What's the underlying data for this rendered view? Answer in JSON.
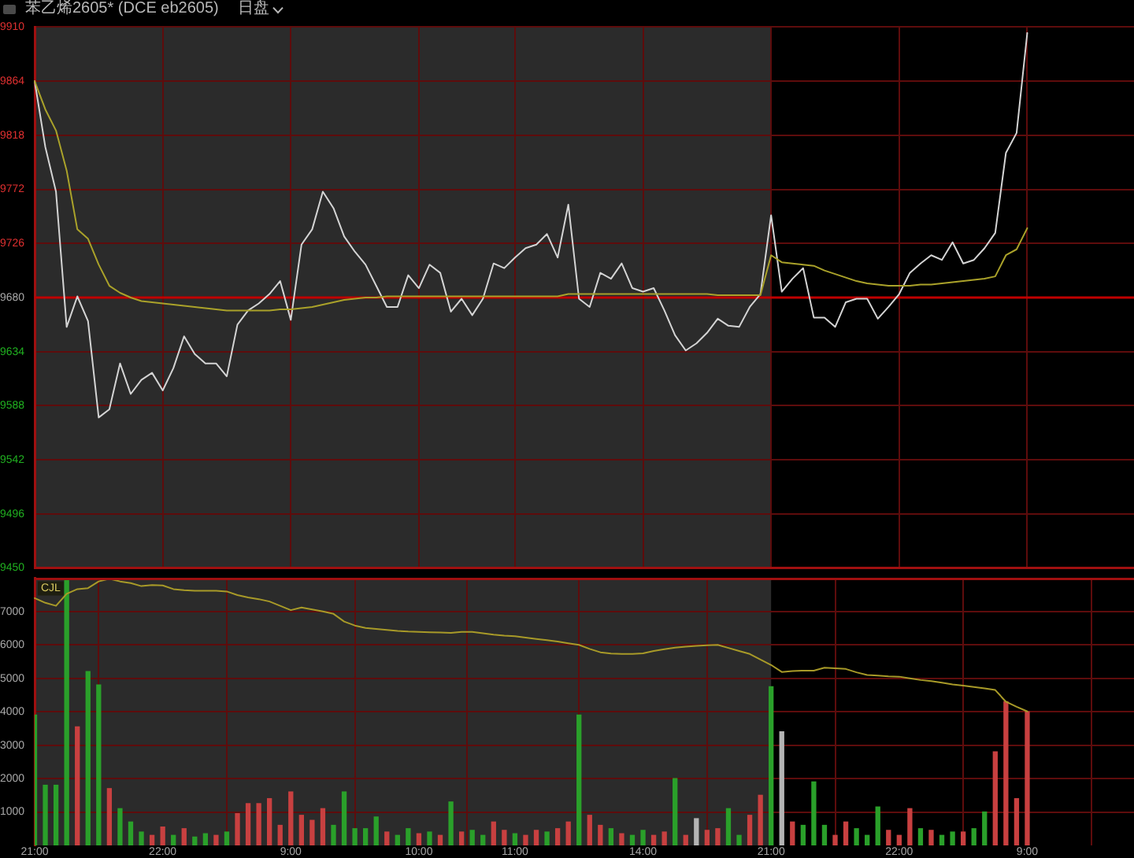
{
  "chart_data": [
    {
      "type": "line",
      "title": "苯乙烯2605* (DCE eb2605)",
      "subtitle": "日盘",
      "tick_labels": "y",
      "grid": true,
      "categories": [
        null,
        null,
        null,
        null,
        null,
        null,
        null,
        null,
        null,
        null,
        null,
        null,
        null,
        null,
        null,
        null,
        null,
        null,
        null,
        null,
        null,
        null,
        null,
        null,
        null,
        null,
        null,
        null,
        null,
        null,
        null,
        null,
        null,
        null,
        null,
        null,
        null,
        null,
        null,
        null,
        null,
        null,
        null,
        null,
        null,
        null,
        null,
        null,
        null,
        null,
        null,
        null,
        null,
        null,
        null,
        null,
        null,
        null,
        null,
        null,
        null,
        null,
        null,
        null,
        null,
        null,
        null,
        null,
        null,
        null,
        null,
        null,
        null,
        null,
        null,
        null,
        null,
        null,
        null,
        null,
        null,
        null,
        null,
        null,
        null,
        null,
        null,
        null,
        null,
        null,
        null,
        null,
        null,
        null,
        null,
        null,
        null,
        null,
        null,
        null,
        null,
        null,
        null,
        null
      ],
      "ylim": [
        9450,
        9910
      ],
      "yticks": [
        9450,
        9496,
        9542,
        9588,
        9634,
        9680,
        9726,
        9772,
        9818,
        9864,
        9910
      ],
      "ref_lines": [
        {
          "axis": "y",
          "value": 9680,
          "color": "#c00000"
        }
      ],
      "series": [
        {
          "color": "#d4d4d4",
          "values": [
            9864,
            9808,
            9770,
            9655,
            9681,
            9660,
            9578,
            9585,
            9624,
            9598,
            9610,
            9616,
            9601,
            9620,
            9647,
            9632,
            9624,
            9624,
            9613,
            9657,
            9669,
            9675,
            9683,
            9694,
            9661,
            9725,
            9738,
            9770,
            9756,
            9732,
            9719,
            9708,
            9690,
            9672,
            9672,
            9699,
            9688,
            9708,
            9701,
            9668,
            9679,
            9665,
            9679,
            9709,
            9705,
            9714,
            9722,
            9725,
            9734,
            9714,
            9759,
            9679,
            9672,
            9701,
            9696,
            9709,
            9688,
            9685,
            9688,
            9669,
            9648,
            9635,
            9641,
            9650,
            9662,
            9656,
            9655,
            9672,
            9683,
            9750,
            9685,
            9696,
            9705,
            9663,
            9663,
            9655,
            9676,
            9679,
            9679,
            9662,
            9672,
            9683,
            9701,
            9709,
            9716,
            9712,
            9727,
            9709,
            9712,
            9722,
            9735,
            9803,
            9820,
            9905,
            null,
            null,
            null,
            null,
            null,
            null,
            null,
            null,
            null,
            null
          ]
        },
        {
          "color": "#aaa22a",
          "values": [
            9864,
            9840,
            9822,
            9788,
            9738,
            9730,
            9708,
            9690,
            9684,
            9680,
            9677,
            9676,
            9675,
            9674,
            9673,
            9672,
            9671,
            9670,
            9669,
            9669,
            9669,
            9669,
            9669,
            9670,
            9670,
            9671,
            9672,
            9674,
            9676,
            9678,
            9679,
            9680,
            9680,
            9681,
            9681,
            9681,
            9681,
            9681,
            9681,
            9681,
            9681,
            9681,
            9681,
            9681,
            9681,
            9681,
            9681,
            9681,
            9681,
            9681,
            9683,
            9683,
            9683,
            9683,
            9683,
            9683,
            9683,
            9683,
            9683,
            9683,
            9683,
            9683,
            9683,
            9683,
            9682,
            9682,
            9682,
            9682,
            9682,
            9716,
            9710,
            9709,
            9708,
            9707,
            9703,
            9700,
            9697,
            9694,
            9692,
            9691,
            9690,
            9690,
            9690,
            9691,
            9691,
            9692,
            9693,
            9694,
            9695,
            9696,
            9698,
            9716,
            9721,
            9739,
            null,
            null,
            null,
            null,
            null,
            null,
            null,
            null,
            null,
            null
          ]
        }
      ]
    },
    {
      "type": "bar",
      "grid": true,
      "annotations": [
        "CJL"
      ],
      "categories": [
        "21:00",
        null,
        null,
        null,
        null,
        null,
        null,
        null,
        null,
        null,
        null,
        null,
        "22:00",
        null,
        null,
        null,
        null,
        null,
        null,
        null,
        null,
        null,
        null,
        null,
        "9:00",
        null,
        null,
        null,
        null,
        null,
        null,
        null,
        null,
        null,
        null,
        null,
        "10:00",
        null,
        null,
        null,
        null,
        null,
        null,
        null,
        null,
        "11:00",
        null,
        null,
        null,
        null,
        null,
        null,
        null,
        null,
        null,
        null,
        null,
        "14:00",
        null,
        null,
        null,
        null,
        null,
        null,
        null,
        null,
        null,
        null,
        null,
        "21:00",
        null,
        null,
        null,
        null,
        null,
        null,
        null,
        null,
        null,
        null,
        null,
        "22:00",
        null,
        null,
        null,
        null,
        null,
        null,
        null,
        null,
        null,
        null,
        null,
        "9:00",
        null,
        null,
        null,
        null,
        null,
        null,
        null,
        null,
        null,
        null
      ],
      "ylim": [
        0,
        8000
      ],
      "yticks": [
        1000,
        2000,
        3000,
        4000,
        5000,
        6000,
        7000
      ],
      "series": [
        {
          "values": [
            3900,
            1800,
            1800,
            7950,
            3550,
            5200,
            4800,
            1700,
            1100,
            700,
            400,
            300,
            550,
            300,
            500,
            250,
            350,
            300,
            400,
            950,
            1250,
            1250,
            1400,
            600,
            1600,
            900,
            750,
            1100,
            600,
            1600,
            500,
            500,
            850,
            400,
            300,
            500,
            350,
            400,
            300,
            1300,
            400,
            450,
            300,
            700,
            450,
            350,
            300,
            450,
            400,
            500,
            700,
            3900,
            900,
            600,
            500,
            350,
            300,
            450,
            300,
            400,
            2000,
            300,
            800,
            450,
            500,
            1100,
            300,
            900,
            1500,
            4750,
            3400,
            700,
            600,
            1900,
            600,
            300,
            700,
            500,
            300,
            1150,
            450,
            300,
            1100,
            500,
            450,
            300,
            400,
            400,
            500,
            1000,
            2800,
            4300,
            1400,
            4000,
            null,
            null,
            null,
            null,
            null,
            null,
            null,
            null,
            null,
            null
          ],
          "colors": [
            "#2aa02a",
            "#2aa02a",
            "#2aa02a",
            "#2aa02a",
            "#c84040",
            "#2aa02a",
            "#2aa02a",
            "#c84040",
            "#2aa02a",
            "#2aa02a",
            "#2aa02a",
            "#c84040",
            "#c84040",
            "#2aa02a",
            "#c84040",
            "#2aa02a",
            "#2aa02a",
            "#c84040",
            "#2aa02a",
            "#c84040",
            "#c84040",
            "#c84040",
            "#c84040",
            "#c84040",
            "#c84040",
            "#c84040",
            "#c84040",
            "#c84040",
            "#2aa02a",
            "#2aa02a",
            "#2aa02a",
            "#2aa02a",
            "#2aa02a",
            "#c84040",
            "#2aa02a",
            "#2aa02a",
            "#c84040",
            "#2aa02a",
            "#c84040",
            "#2aa02a",
            "#c84040",
            "#2aa02a",
            "#2aa02a",
            "#c84040",
            "#c84040",
            "#2aa02a",
            "#c84040",
            "#c84040",
            "#2aa02a",
            "#c84040",
            "#c84040",
            "#2aa02a",
            "#c84040",
            "#c84040",
            "#2aa02a",
            "#c84040",
            "#2aa02a",
            "#2aa02a",
            "#c84040",
            "#c84040",
            "#2aa02a",
            "#c84040",
            "#b4b4b4",
            "#c84040",
            "#c84040",
            "#2aa02a",
            "#2aa02a",
            "#c84040",
            "#c84040",
            "#2aa02a",
            "#b4b4b4",
            "#c84040",
            "#2aa02a",
            "#2aa02a",
            "#2aa02a",
            "#c84040",
            "#c84040",
            "#2aa02a",
            "#2aa02a",
            "#2aa02a",
            "#c84040",
            "#c84040",
            "#c84040",
            "#2aa02a",
            "#c84040",
            "#2aa02a",
            "#2aa02a",
            "#c84040",
            "#2aa02a",
            "#2aa02a",
            "#c84040",
            "#c84040",
            "#c84040",
            "#c84040",
            null,
            null,
            null,
            null,
            null,
            null,
            null,
            null,
            null,
            null
          ]
        },
        {
          "type": "line",
          "color": "#a89a28",
          "values": [
            7400,
            7260,
            7170,
            7530,
            7670,
            7700,
            7900,
            7980,
            7900,
            7850,
            7760,
            7790,
            7780,
            7670,
            7640,
            7620,
            7620,
            7620,
            7600,
            7490,
            7420,
            7370,
            7300,
            7170,
            7040,
            7120,
            7060,
            7000,
            6930,
            6700,
            6580,
            6510,
            6480,
            6450,
            6420,
            6400,
            6390,
            6380,
            6370,
            6360,
            6390,
            6390,
            6350,
            6310,
            6280,
            6260,
            6220,
            6180,
            6140,
            6100,
            6050,
            6000,
            5880,
            5780,
            5740,
            5730,
            5730,
            5750,
            5820,
            5870,
            5920,
            5950,
            5970,
            5990,
            6000,
            5910,
            5820,
            5730,
            5560,
            5400,
            5190,
            5220,
            5230,
            5230,
            5320,
            5300,
            5280,
            5180,
            5100,
            5080,
            5060,
            5050,
            5000,
            4950,
            4920,
            4870,
            4820,
            4780,
            4740,
            4700,
            4650,
            4300,
            4150,
            4010,
            null,
            null,
            null,
            null,
            null,
            null,
            null,
            null,
            null,
            null
          ]
        }
      ]
    }
  ]
}
